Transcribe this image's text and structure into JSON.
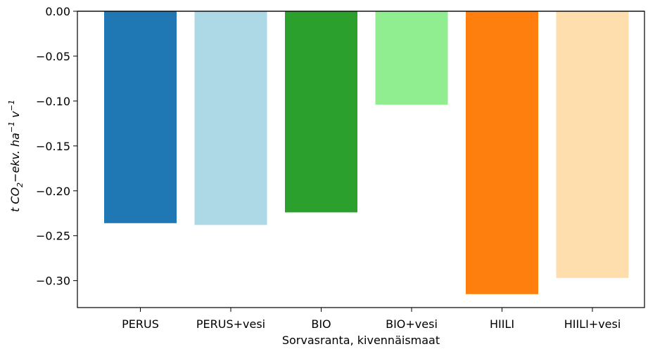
{
  "chart_data": {
    "type": "bar",
    "categories": [
      "PERUS",
      "PERUS+vesi",
      "BIO",
      "BIO+vesi",
      "HIILI",
      "HIILI+vesi"
    ],
    "values": [
      -0.236,
      -0.238,
      -0.224,
      -0.104,
      -0.315,
      -0.297
    ],
    "colors": [
      "#1f77b4",
      "#add8e6",
      "#2ca02c",
      "#90ee90",
      "#ff7f0e",
      "#ffdead"
    ],
    "title": "",
    "xlabel": "Sorvasranta, kivennäismaat",
    "ylabel": "t CO2−ekv. ha−1 v−1",
    "ylabel_parts": {
      "t": "t ",
      "co": "CO",
      "sub2": "2",
      "ekv": "−ekv. ha",
      "sup1": "−1",
      "v": " v",
      "sup2": "−1"
    },
    "ylim": [
      -0.33,
      0.0
    ],
    "yticks": [
      0.0,
      -0.05,
      -0.1,
      -0.15,
      -0.2,
      -0.25,
      -0.3
    ],
    "ytick_labels": [
      "0.00",
      "−0.05",
      "−0.10",
      "−0.15",
      "−0.20",
      "−0.25",
      "−0.30"
    ],
    "grid": false
  }
}
